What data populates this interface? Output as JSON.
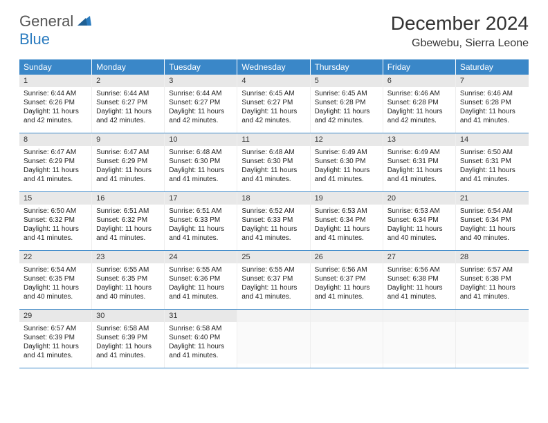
{
  "logo": {
    "general": "General",
    "blue": "Blue"
  },
  "title": "December 2024",
  "location": "Gbewebu, Sierra Leone",
  "colors": {
    "header_bg": "#3a87c8",
    "header_text": "#ffffff",
    "daynum_bg": "#e8e8e8",
    "border": "#3a87c8",
    "logo_blue": "#2a7bbf"
  },
  "day_headers": [
    "Sunday",
    "Monday",
    "Tuesday",
    "Wednesday",
    "Thursday",
    "Friday",
    "Saturday"
  ],
  "weeks": [
    [
      {
        "n": "1",
        "sunrise": "6:44 AM",
        "sunset": "6:26 PM",
        "daylight": "11 hours and 42 minutes."
      },
      {
        "n": "2",
        "sunrise": "6:44 AM",
        "sunset": "6:27 PM",
        "daylight": "11 hours and 42 minutes."
      },
      {
        "n": "3",
        "sunrise": "6:44 AM",
        "sunset": "6:27 PM",
        "daylight": "11 hours and 42 minutes."
      },
      {
        "n": "4",
        "sunrise": "6:45 AM",
        "sunset": "6:27 PM",
        "daylight": "11 hours and 42 minutes."
      },
      {
        "n": "5",
        "sunrise": "6:45 AM",
        "sunset": "6:28 PM",
        "daylight": "11 hours and 42 minutes."
      },
      {
        "n": "6",
        "sunrise": "6:46 AM",
        "sunset": "6:28 PM",
        "daylight": "11 hours and 42 minutes."
      },
      {
        "n": "7",
        "sunrise": "6:46 AM",
        "sunset": "6:28 PM",
        "daylight": "11 hours and 41 minutes."
      }
    ],
    [
      {
        "n": "8",
        "sunrise": "6:47 AM",
        "sunset": "6:29 PM",
        "daylight": "11 hours and 41 minutes."
      },
      {
        "n": "9",
        "sunrise": "6:47 AM",
        "sunset": "6:29 PM",
        "daylight": "11 hours and 41 minutes."
      },
      {
        "n": "10",
        "sunrise": "6:48 AM",
        "sunset": "6:30 PM",
        "daylight": "11 hours and 41 minutes."
      },
      {
        "n": "11",
        "sunrise": "6:48 AM",
        "sunset": "6:30 PM",
        "daylight": "11 hours and 41 minutes."
      },
      {
        "n": "12",
        "sunrise": "6:49 AM",
        "sunset": "6:30 PM",
        "daylight": "11 hours and 41 minutes."
      },
      {
        "n": "13",
        "sunrise": "6:49 AM",
        "sunset": "6:31 PM",
        "daylight": "11 hours and 41 minutes."
      },
      {
        "n": "14",
        "sunrise": "6:50 AM",
        "sunset": "6:31 PM",
        "daylight": "11 hours and 41 minutes."
      }
    ],
    [
      {
        "n": "15",
        "sunrise": "6:50 AM",
        "sunset": "6:32 PM",
        "daylight": "11 hours and 41 minutes."
      },
      {
        "n": "16",
        "sunrise": "6:51 AM",
        "sunset": "6:32 PM",
        "daylight": "11 hours and 41 minutes."
      },
      {
        "n": "17",
        "sunrise": "6:51 AM",
        "sunset": "6:33 PM",
        "daylight": "11 hours and 41 minutes."
      },
      {
        "n": "18",
        "sunrise": "6:52 AM",
        "sunset": "6:33 PM",
        "daylight": "11 hours and 41 minutes."
      },
      {
        "n": "19",
        "sunrise": "6:53 AM",
        "sunset": "6:34 PM",
        "daylight": "11 hours and 41 minutes."
      },
      {
        "n": "20",
        "sunrise": "6:53 AM",
        "sunset": "6:34 PM",
        "daylight": "11 hours and 40 minutes."
      },
      {
        "n": "21",
        "sunrise": "6:54 AM",
        "sunset": "6:34 PM",
        "daylight": "11 hours and 40 minutes."
      }
    ],
    [
      {
        "n": "22",
        "sunrise": "6:54 AM",
        "sunset": "6:35 PM",
        "daylight": "11 hours and 40 minutes."
      },
      {
        "n": "23",
        "sunrise": "6:55 AM",
        "sunset": "6:35 PM",
        "daylight": "11 hours and 40 minutes."
      },
      {
        "n": "24",
        "sunrise": "6:55 AM",
        "sunset": "6:36 PM",
        "daylight": "11 hours and 41 minutes."
      },
      {
        "n": "25",
        "sunrise": "6:55 AM",
        "sunset": "6:37 PM",
        "daylight": "11 hours and 41 minutes."
      },
      {
        "n": "26",
        "sunrise": "6:56 AM",
        "sunset": "6:37 PM",
        "daylight": "11 hours and 41 minutes."
      },
      {
        "n": "27",
        "sunrise": "6:56 AM",
        "sunset": "6:38 PM",
        "daylight": "11 hours and 41 minutes."
      },
      {
        "n": "28",
        "sunrise": "6:57 AM",
        "sunset": "6:38 PM",
        "daylight": "11 hours and 41 minutes."
      }
    ],
    [
      {
        "n": "29",
        "sunrise": "6:57 AM",
        "sunset": "6:39 PM",
        "daylight": "11 hours and 41 minutes."
      },
      {
        "n": "30",
        "sunrise": "6:58 AM",
        "sunset": "6:39 PM",
        "daylight": "11 hours and 41 minutes."
      },
      {
        "n": "31",
        "sunrise": "6:58 AM",
        "sunset": "6:40 PM",
        "daylight": "11 hours and 41 minutes."
      },
      null,
      null,
      null,
      null
    ]
  ],
  "labels": {
    "sunrise": "Sunrise:",
    "sunset": "Sunset:",
    "daylight": "Daylight:"
  }
}
